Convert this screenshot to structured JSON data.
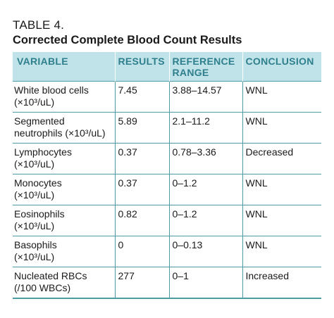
{
  "table": {
    "label": "TABLE 4.",
    "title": "Corrected Complete Blood Count Results",
    "headers": {
      "variable": "VARIABLE",
      "results": "RESULTS",
      "reference_line1": "REFERENCE",
      "reference_line2": "RANGE",
      "conclusion": "CONCLUSION"
    },
    "rows": [
      {
        "variable_line1": "White blood cells",
        "variable_line2": "(×10³/uL)",
        "result": "7.45",
        "reference": "3.88–14.57",
        "conclusion": "WNL"
      },
      {
        "variable_line1": "Segmented",
        "variable_line2": "neutrophils (×10³/uL)",
        "result": "5.89",
        "reference": "2.1–11.2",
        "conclusion": "WNL"
      },
      {
        "variable_line1": "Lymphocytes",
        "variable_line2": "(×10³/uL)",
        "result": "0.37",
        "reference": "0.78–3.36",
        "conclusion": "Decreased"
      },
      {
        "variable_line1": "Monocytes",
        "variable_line2": "(×10³/uL)",
        "result": "0.37",
        "reference": "0–1.2",
        "conclusion": "WNL"
      },
      {
        "variable_line1": "Eosinophils",
        "variable_line2": "(×10³/uL)",
        "result": "0.82",
        "reference": "0–1.2",
        "conclusion": "WNL"
      },
      {
        "variable_line1": "Basophils",
        "variable_line2": "(×10³/uL)",
        "result": "0",
        "reference": "0–0.13",
        "conclusion": "WNL"
      },
      {
        "variable_line1": "Nucleated RBCs",
        "variable_line2": "(/100 WBCs)",
        "result": "277",
        "reference": "0–1",
        "conclusion": "Increased"
      }
    ]
  },
  "colors": {
    "header_bg": "#bfe3e8",
    "header_text": "#2f7f8d",
    "rule": "#4e9aa6"
  }
}
